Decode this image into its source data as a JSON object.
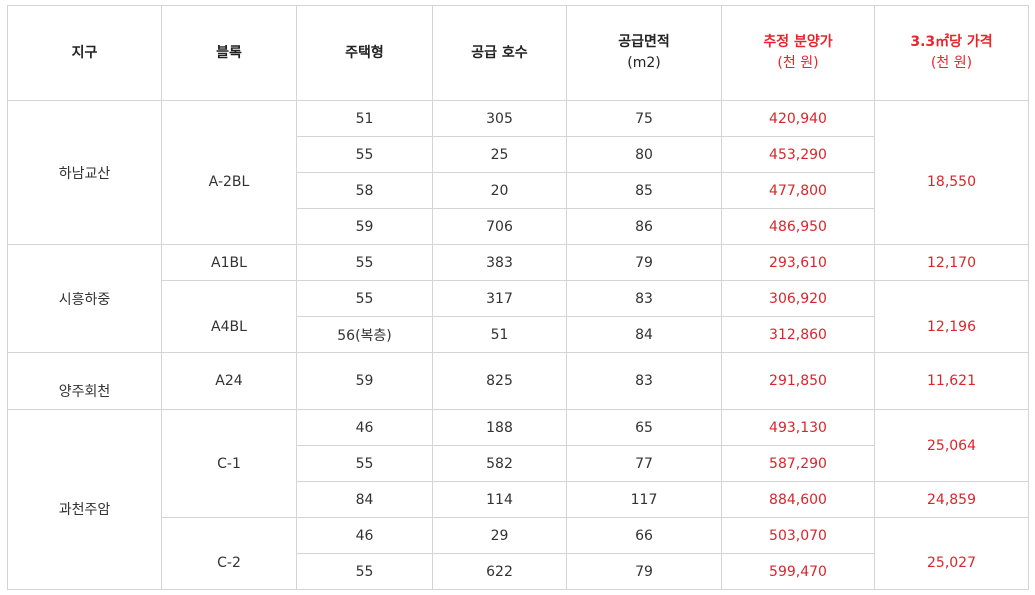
{
  "headers": {
    "district": "지구",
    "block": "블록",
    "house_type": "주택형",
    "supply_units": "공급 호수",
    "area": "공급면적",
    "area_unit": "(m2)",
    "est_price": "추정 분양가",
    "est_price_unit": "(천 원)",
    "per_price": "3.3㎡당 가격",
    "per_price_unit": "(천 원)"
  },
  "groups": [
    {
      "district": "하남교산",
      "block": "A-2BL",
      "per_price": "18,550",
      "rows": [
        {
          "type": "51",
          "units": "305",
          "area": "75",
          "price": "420,940"
        },
        {
          "type": "55",
          "units": "25",
          "area": "80",
          "price": "453,290"
        },
        {
          "type": "58",
          "units": "20",
          "area": "85",
          "price": "477,800"
        },
        {
          "type": "59",
          "units": "706",
          "area": "86",
          "price": "486,950"
        }
      ]
    },
    {
      "district": "시흥하중",
      "blocks": [
        {
          "block": "A1BL",
          "per_price": "12,170",
          "rows": [
            {
              "type": "55",
              "units": "383",
              "area": "79",
              "price": "293,610"
            }
          ]
        },
        {
          "block": "A4BL",
          "per_price": "12,196",
          "rows": [
            {
              "type": "55",
              "units": "317",
              "area": "83",
              "price": "306,920"
            },
            {
              "type": "56(복층)",
              "units": "51",
              "area": "84",
              "price": "312,860"
            }
          ]
        }
      ]
    },
    {
      "district": "양주회천",
      "block": "A24",
      "per_price": "11,621",
      "rows": [
        {
          "type": "59",
          "units": "825",
          "area": "83",
          "price": "291,850"
        }
      ]
    },
    {
      "district": "과천주암",
      "blocks": [
        {
          "block": "C-1",
          "per_prices": [
            "25,064",
            "24,859"
          ],
          "rows": [
            {
              "type": "46",
              "units": "188",
              "area": "65",
              "price": "493,130"
            },
            {
              "type": "55",
              "units": "582",
              "area": "77",
              "price": "587,290"
            },
            {
              "type": "84",
              "units": "114",
              "area": "117",
              "price": "884,600"
            }
          ]
        },
        {
          "block": "C-2",
          "per_price": "25,027",
          "rows": [
            {
              "type": "46",
              "units": "29",
              "area": "66",
              "price": "503,070"
            },
            {
              "type": "55",
              "units": "622",
              "area": "79",
              "price": "599,470"
            }
          ]
        }
      ]
    }
  ]
}
